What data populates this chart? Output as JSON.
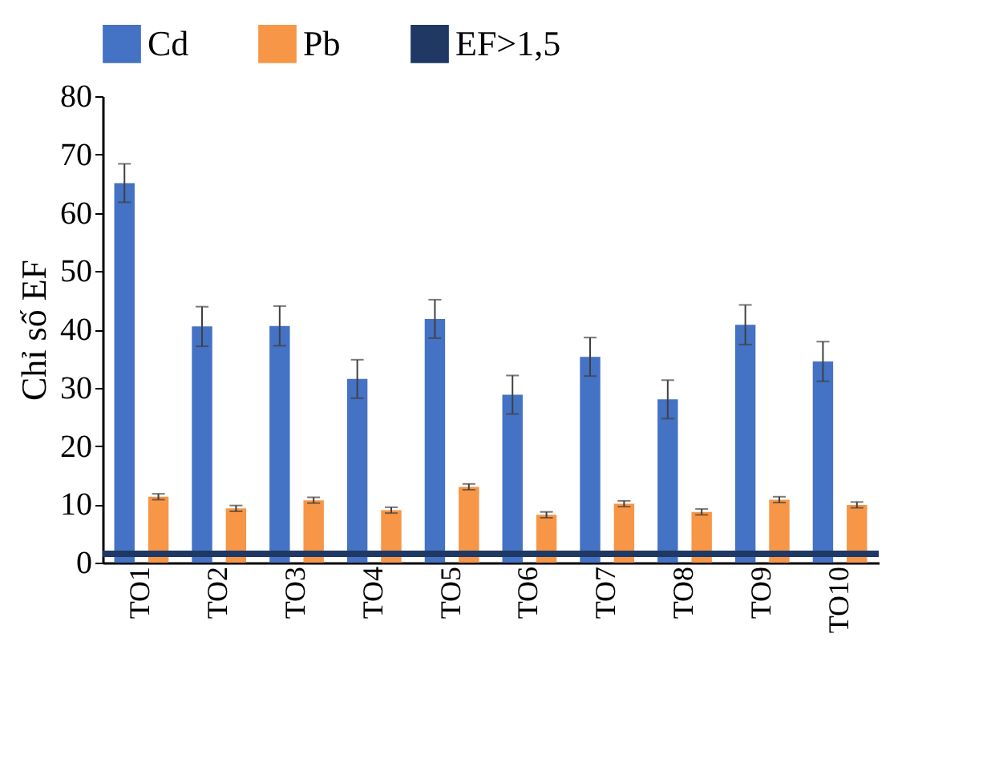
{
  "chart_data": {
    "type": "bar",
    "ylabel": "Chỉ số EF",
    "categories": [
      "TO1",
      "TO2",
      "TO3",
      "TO4",
      "TO5",
      "TO6",
      "TO7",
      "TO8",
      "TO9",
      "TO10"
    ],
    "series": [
      {
        "name": "Cd",
        "color": "#4472c4",
        "values": [
          65.1,
          40.5,
          40.6,
          31.5,
          41.8,
          28.8,
          35.3,
          28.0,
          40.8,
          34.5
        ],
        "errors": [
          3.3,
          3.4,
          3.4,
          3.3,
          3.3,
          3.3,
          3.3,
          3.3,
          3.4,
          3.4
        ]
      },
      {
        "name": "Pb",
        "color": "#f79646",
        "values": [
          11.3,
          9.3,
          10.7,
          9.0,
          13.0,
          8.2,
          10.1,
          8.7,
          10.8,
          9.9
        ],
        "errors": [
          0.5,
          0.5,
          0.5,
          0.5,
          0.5,
          0.5,
          0.5,
          0.5,
          0.5,
          0.5
        ]
      }
    ],
    "ref_lines": [
      {
        "axis": "y",
        "value": 1.5,
        "label": "EF>1,5",
        "color": "#1f3864",
        "line_style": "solid"
      }
    ],
    "ylim": [
      0,
      80
    ],
    "yticks": [
      0,
      10,
      20,
      30,
      40,
      50,
      60,
      70,
      80
    ],
    "grid": false,
    "legend": "top"
  }
}
